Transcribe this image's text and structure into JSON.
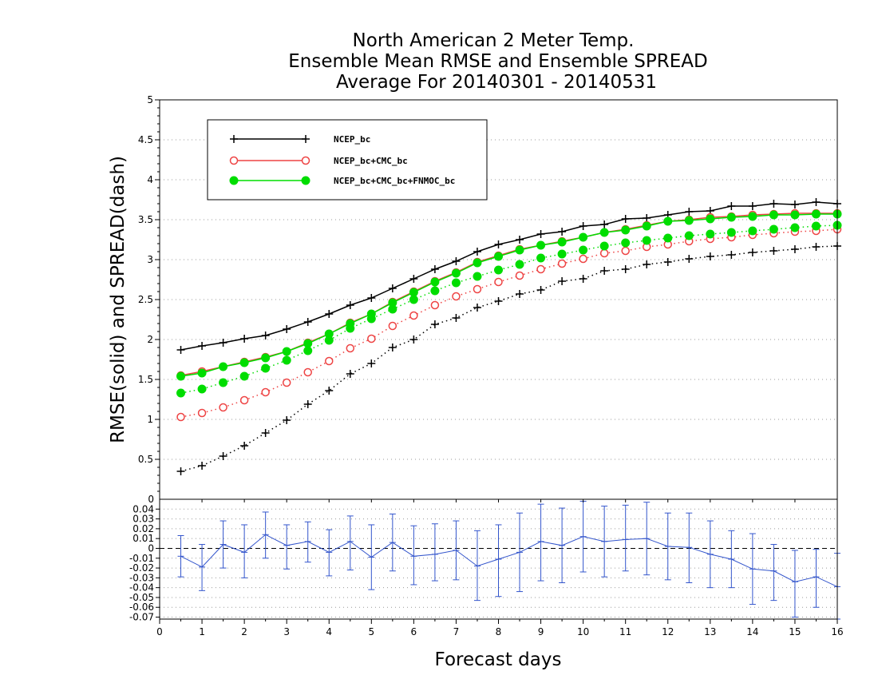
{
  "title_lines": [
    "North American 2 Meter Temp.",
    "Ensemble Mean RMSE and Ensemble SPREAD",
    "Average For 20140301 - 20140531"
  ],
  "chart_data": [
    {
      "type": "line",
      "xlabel": "Forecast days",
      "ylabel": "RMSE(solid) and SPREAD(dash)",
      "xlim": [
        0,
        16
      ],
      "ylim": [
        0,
        5
      ],
      "x_ticks": [
        0,
        1,
        2,
        3,
        4,
        5,
        6,
        7,
        8,
        9,
        10,
        11,
        12,
        13,
        14,
        15,
        16
      ],
      "y_ticks": [
        0.5,
        1,
        1.5,
        2,
        2.5,
        3,
        3.5,
        4,
        4.5,
        5
      ],
      "y_tick_labels": [
        "0.5",
        "1",
        "1.5",
        "2",
        "2.5",
        "3",
        "3.5",
        "4",
        "4.5",
        "5"
      ],
      "grid": true,
      "legend_position": "top-left",
      "x": [
        0.5,
        1,
        1.5,
        2,
        2.5,
        3,
        3.5,
        4,
        4.5,
        5,
        5.5,
        6,
        6.5,
        7,
        7.5,
        8,
        8.5,
        9,
        9.5,
        10,
        10.5,
        11,
        11.5,
        12,
        12.5,
        13,
        13.5,
        14,
        14.5,
        15,
        15.5,
        16
      ],
      "series": [
        {
          "name": "NCEP_bc",
          "color": "#000000",
          "marker": "plus",
          "rmse": [
            1.87,
            1.92,
            1.96,
            2.01,
            2.05,
            2.13,
            2.22,
            2.32,
            2.43,
            2.52,
            2.64,
            2.76,
            2.88,
            2.98,
            3.1,
            3.19,
            3.25,
            3.32,
            3.35,
            3.42,
            3.44,
            3.51,
            3.52,
            3.56,
            3.6,
            3.61,
            3.67,
            3.67,
            3.7,
            3.69,
            3.72,
            3.7
          ],
          "spread": [
            0.35,
            0.42,
            0.54,
            0.67,
            0.83,
            0.99,
            1.19,
            1.36,
            1.57,
            1.7,
            1.9,
            2.0,
            2.19,
            2.27,
            2.4,
            2.48,
            2.57,
            2.62,
            2.73,
            2.76,
            2.86,
            2.88,
            2.94,
            2.97,
            3.01,
            3.04,
            3.06,
            3.09,
            3.11,
            3.13,
            3.16,
            3.17
          ]
        },
        {
          "name": "NCEP_bc+CMC_bc",
          "color": "#ee4444",
          "marker": "open-circle",
          "rmse": [
            1.55,
            1.6,
            1.66,
            1.72,
            1.78,
            1.85,
            1.96,
            2.07,
            2.21,
            2.32,
            2.47,
            2.6,
            2.73,
            2.84,
            2.97,
            3.05,
            3.13,
            3.18,
            3.23,
            3.28,
            3.34,
            3.38,
            3.43,
            3.48,
            3.5,
            3.53,
            3.54,
            3.56,
            3.57,
            3.58,
            3.58,
            3.58
          ],
          "spread": [
            1.03,
            1.08,
            1.15,
            1.24,
            1.34,
            1.46,
            1.59,
            1.73,
            1.89,
            2.01,
            2.17,
            2.3,
            2.43,
            2.54,
            2.63,
            2.72,
            2.8,
            2.88,
            2.95,
            3.01,
            3.08,
            3.11,
            3.16,
            3.19,
            3.23,
            3.26,
            3.28,
            3.31,
            3.33,
            3.35,
            3.36,
            3.38
          ]
        },
        {
          "name": "NCEP_bc+CMC_bc+FNMOC_bc",
          "color": "#00dd00",
          "marker": "filled-circle",
          "rmse": [
            1.54,
            1.58,
            1.66,
            1.71,
            1.77,
            1.85,
            1.95,
            2.07,
            2.2,
            2.32,
            2.46,
            2.59,
            2.72,
            2.83,
            2.96,
            3.04,
            3.12,
            3.18,
            3.22,
            3.28,
            3.34,
            3.37,
            3.42,
            3.48,
            3.49,
            3.51,
            3.53,
            3.54,
            3.56,
            3.56,
            3.57,
            3.57
          ],
          "spread": [
            1.33,
            1.38,
            1.46,
            1.54,
            1.64,
            1.74,
            1.86,
            1.99,
            2.14,
            2.26,
            2.38,
            2.5,
            2.61,
            2.71,
            2.79,
            2.87,
            2.94,
            3.02,
            3.07,
            3.12,
            3.17,
            3.21,
            3.24,
            3.27,
            3.3,
            3.32,
            3.34,
            3.36,
            3.38,
            3.4,
            3.42,
            3.43
          ]
        }
      ]
    },
    {
      "type": "line",
      "xlim": [
        0,
        16
      ],
      "ylim": [
        -0.072,
        0.05
      ],
      "x_ticks": [
        0,
        1,
        2,
        3,
        4,
        5,
        6,
        7,
        8,
        9,
        10,
        11,
        12,
        13,
        14,
        15,
        16
      ],
      "y_ticks": [
        0.04,
        0.03,
        0.02,
        0.01,
        0,
        -0.01,
        -0.02,
        -0.03,
        -0.04,
        -0.05,
        -0.06,
        -0.07
      ],
      "y_tick_labels": [
        "0.04",
        "0.03",
        "0.02",
        "0.01",
        "0",
        "-0.01",
        "-0.02",
        "-0.03",
        "-0.04",
        "-0.05",
        "-0.06",
        "-0.07"
      ],
      "top_label": "0",
      "grid": true,
      "zero_line": true,
      "color": "#3355cc",
      "x": [
        0.5,
        1,
        1.5,
        2,
        2.5,
        3,
        3.5,
        4,
        4.5,
        5,
        5.5,
        6,
        6.5,
        7,
        7.5,
        8,
        8.5,
        9,
        9.5,
        10,
        10.5,
        11,
        11.5,
        12,
        12.5,
        13,
        13.5,
        14,
        14.5,
        15,
        15.5,
        16
      ],
      "values": [
        -0.008,
        -0.019,
        0.004,
        -0.004,
        0.014,
        0.003,
        0.007,
        -0.004,
        0.007,
        -0.009,
        0.006,
        -0.008,
        -0.006,
        -0.002,
        -0.018,
        -0.011,
        -0.004,
        0.007,
        0.003,
        0.012,
        0.007,
        0.009,
        0.01,
        0.002,
        0.001,
        -0.006,
        -0.011,
        -0.021,
        -0.023,
        -0.034,
        -0.029,
        -0.039
      ],
      "upper": [
        0.013,
        0.004,
        0.028,
        0.024,
        0.037,
        0.024,
        0.027,
        0.019,
        0.033,
        0.024,
        0.035,
        0.023,
        0.025,
        0.028,
        0.018,
        0.024,
        0.036,
        0.045,
        0.041,
        0.048,
        0.043,
        0.044,
        0.047,
        0.036,
        0.036,
        0.028,
        0.018,
        0.015,
        0.004,
        -0.002,
        -0.001,
        -0.005
      ],
      "lower": [
        -0.029,
        -0.043,
        -0.02,
        -0.03,
        -0.01,
        -0.021,
        -0.014,
        -0.028,
        -0.022,
        -0.042,
        -0.023,
        -0.037,
        -0.033,
        -0.032,
        -0.053,
        -0.049,
        -0.044,
        -0.033,
        -0.035,
        -0.024,
        -0.029,
        -0.023,
        -0.027,
        -0.032,
        -0.035,
        -0.04,
        -0.04,
        -0.057,
        -0.053,
        -0.07,
        -0.06,
        -0.072
      ]
    }
  ]
}
